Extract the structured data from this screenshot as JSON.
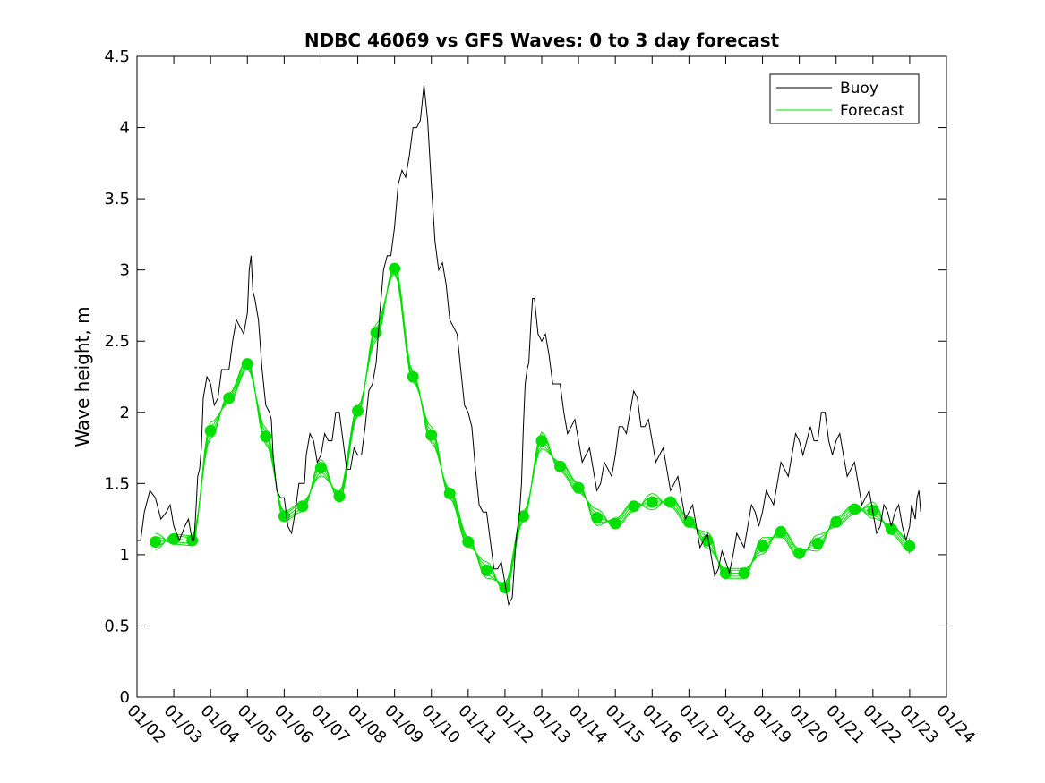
{
  "chart_data": {
    "type": "line",
    "title": "NDBC 46069 vs GFS Waves: 0 to 3 day forecast",
    "xlabel": "",
    "ylabel": "Wave height, m",
    "xlim": [
      0,
      22
    ],
    "ylim": [
      0,
      4.5
    ],
    "y_ticks": [
      0,
      0.5,
      1,
      1.5,
      2,
      2.5,
      3,
      3.5,
      4,
      4.5
    ],
    "y_tick_labels": [
      "0",
      "0.5",
      "1",
      "1.5",
      "2",
      "2.5",
      "3",
      "3.5",
      "4",
      "4.5"
    ],
    "x_tick_labels": [
      "01/02",
      "01/03",
      "01/04",
      "01/05",
      "01/06",
      "01/07",
      "01/08",
      "01/09",
      "01/10",
      "01/11",
      "01/12",
      "01/13",
      "01/14",
      "01/15",
      "01/16",
      "01/17",
      "01/18",
      "01/19",
      "01/20",
      "01/21",
      "01/22",
      "01/23",
      "01/24"
    ],
    "legend": {
      "position": "top-right",
      "entries": [
        "Buoy",
        "Forecast"
      ]
    },
    "colors": {
      "buoy": "#000000",
      "forecast": "#00e000"
    },
    "series": [
      {
        "name": "Buoy",
        "x": [
          0,
          0.2,
          0.5,
          0.8,
          1.0,
          1.3,
          1.5,
          1.6,
          1.7,
          1.8,
          2.0,
          2.2,
          2.4,
          2.6,
          2.8,
          3.0,
          3.1,
          3.2,
          3.4,
          3.6,
          3.7,
          3.9,
          4.1,
          4.3,
          4.5,
          4.6,
          4.8,
          5.0,
          5.2,
          5.4,
          5.6,
          5.8,
          6.0,
          6.2,
          6.4,
          6.6,
          6.8,
          7.0,
          7.2,
          7.4,
          7.6,
          7.8,
          8.0,
          8.2,
          8.4,
          8.6,
          8.8,
          9.0,
          9.2,
          9.4,
          9.6,
          9.8,
          10.0,
          10.2,
          10.4,
          10.5,
          10.6,
          10.7,
          10.8,
          11.0,
          11.2,
          11.4,
          11.6,
          11.8,
          12.0,
          12.2,
          12.4,
          12.6,
          12.8,
          13.0,
          13.2,
          13.4,
          13.6,
          13.8,
          14.0,
          14.2,
          14.4,
          14.6,
          14.8,
          15.0,
          15.2,
          15.4,
          15.6,
          15.8,
          16.0,
          16.2,
          16.4,
          16.6,
          16.8,
          17.0,
          17.2,
          17.4,
          17.6,
          17.8,
          18.0,
          18.2,
          18.4,
          18.6,
          18.8,
          19.0,
          19.2,
          19.4,
          19.6,
          19.8,
          20.0,
          20.2,
          20.4,
          20.6,
          20.8,
          21.0,
          21.1,
          21.2,
          21.3
        ],
        "values": [
          1.1,
          1.3,
          1.4,
          1.3,
          1.2,
          1.2,
          1.1,
          1.3,
          1.6,
          2.1,
          2.2,
          2.1,
          2.3,
          2.5,
          2.6,
          2.7,
          3.1,
          2.8,
          2.3,
          2.0,
          1.7,
          1.4,
          1.2,
          1.3,
          1.5,
          1.7,
          1.8,
          1.7,
          1.8,
          2.0,
          1.8,
          1.6,
          1.7,
          1.9,
          2.2,
          2.7,
          3.1,
          3.3,
          3.7,
          3.8,
          4.0,
          4.3,
          3.6,
          3.0,
          2.9,
          2.6,
          2.3,
          2.0,
          1.6,
          1.3,
          1.1,
          0.9,
          0.8,
          0.7,
          1.3,
          1.9,
          2.3,
          2.6,
          2.8,
          2.5,
          2.4,
          2.2,
          2.0,
          1.9,
          1.8,
          1.7,
          1.6,
          1.5,
          1.6,
          1.7,
          1.9,
          2.0,
          2.1,
          1.9,
          1.8,
          1.7,
          1.6,
          1.5,
          1.4,
          1.3,
          1.2,
          1.1,
          1.0,
          0.9,
          0.95,
          1.0,
          1.1,
          1.2,
          1.3,
          1.3,
          1.4,
          1.5,
          1.6,
          1.7,
          1.8,
          1.8,
          1.8,
          2.0,
          1.8,
          1.8,
          1.7,
          1.6,
          1.5,
          1.4,
          1.3,
          1.2,
          1.3,
          1.3,
          1.2,
          1.2,
          1.3,
          1.4,
          1.3
        ]
      },
      {
        "name": "Forecast",
        "x": [
          0.5,
          1.0,
          1.5,
          2.0,
          2.5,
          3.0,
          3.5,
          4.0,
          4.5,
          5.0,
          5.5,
          6.0,
          6.5,
          7.0,
          7.5,
          8.0,
          8.5,
          9.0,
          9.5,
          10.0,
          10.5,
          11.0,
          11.5,
          12.0,
          12.5,
          13.0,
          13.5,
          14.0,
          14.5,
          15.0,
          15.5,
          16.0,
          16.5,
          17.0,
          17.5,
          18.0,
          18.5,
          19.0,
          19.5,
          20.0,
          20.5,
          21.0
        ],
        "values": [
          1.09,
          1.11,
          1.1,
          1.87,
          2.1,
          2.34,
          1.83,
          1.27,
          1.34,
          1.61,
          1.41,
          2.01,
          2.56,
          3.01,
          2.25,
          1.84,
          1.43,
          1.09,
          0.89,
          0.77,
          1.27,
          1.8,
          1.62,
          1.47,
          1.26,
          1.22,
          1.34,
          1.37,
          1.37,
          1.23,
          1.1,
          0.87,
          0.87,
          1.06,
          1.16,
          1.01,
          1.08,
          1.23,
          1.32,
          1.31,
          1.18,
          1.06
        ]
      }
    ]
  }
}
